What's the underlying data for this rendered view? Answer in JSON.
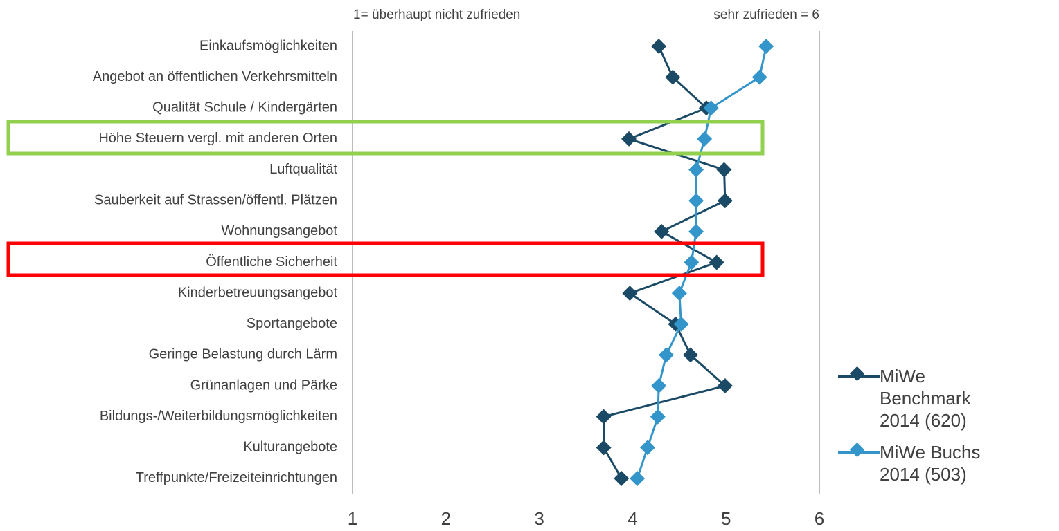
{
  "chart_data": {
    "type": "line",
    "annotations": [
      "1= überhaupt nicht zufrieden",
      "sehr zufrieden = 6"
    ],
    "categories": [
      "Einkaufsmöglichkeiten",
      "Angebot an öffentlichen Verkehrsmitteln",
      "Qualität Schule / Kindergärten",
      "Höhe Steuern vergl. mit anderen Orten",
      "Luftqualität",
      "Sauberkeit auf Strassen/öffentl. Plätzen",
      "Wohnungsangebot",
      "Öffentliche Sicherheit",
      "Kinderbetreuungsangebot",
      "Sportangebote",
      "Geringe Belastung durch Lärm",
      "Grünanlagen und Pärke",
      "Bildungs-/Weiterbildungsmöglichkeiten",
      "Kulturangebote",
      "Treffpunkte/Freizeiteinrichtungen"
    ],
    "series": [
      {
        "name": "MiWe Benchmark 2014 (620)",
        "color": "#1b4a66",
        "values": [
          4.28,
          4.43,
          4.79,
          3.96,
          4.98,
          4.99,
          4.31,
          4.9,
          3.97,
          4.46,
          4.62,
          4.99,
          3.69,
          3.69,
          3.88
        ]
      },
      {
        "name": "MiWe Buchs 2014 (503)",
        "color": "#3395c9",
        "values": [
          5.43,
          5.36,
          4.84,
          4.77,
          4.68,
          4.68,
          4.68,
          4.63,
          4.5,
          4.52,
          4.36,
          4.28,
          4.27,
          4.16,
          4.05
        ]
      }
    ],
    "xlim": [
      1,
      6
    ],
    "xticks": [
      1,
      2,
      3,
      4,
      5,
      6
    ]
  }
}
